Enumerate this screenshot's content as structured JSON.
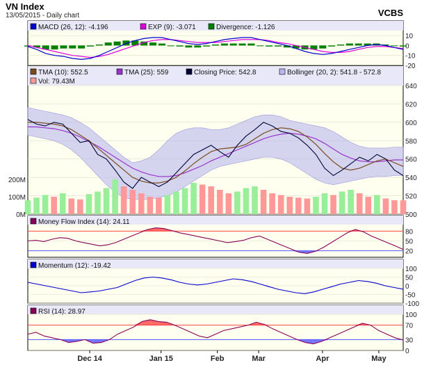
{
  "header": {
    "title": "VN Index",
    "subtitle": "13/05/2015 - Daily chart",
    "source": "VCBS"
  },
  "x_axis_labels": [
    "Dec 14",
    "Jan 15",
    "Feb",
    "Mar",
    "Apr",
    "May"
  ],
  "colors": {
    "panel_bg": "#fffff0",
    "legend_bg": "#e8e8f8",
    "macd": "#0000cc",
    "exp": "#dd00dd",
    "divergence": "#008000",
    "tma10": "#7b4a1e",
    "tma25": "#9933cc",
    "close": "#000033",
    "bollinger": "#b8b8ee",
    "vol_up": "#99ee99",
    "vol_down": "#ff9999",
    "mfi": "#880055",
    "momentum": "#0000cc",
    "rsi": "#880055",
    "band_high": "#ff4444",
    "band_low": "#5555ff"
  },
  "chart_data": [
    {
      "type": "line",
      "panel": "macd",
      "legend": [
        {
          "label": "MACD (26, 12): -4.196",
          "color": "macd"
        },
        {
          "label": "EXP (9): -3.071",
          "color": "exp"
        },
        {
          "label": "Divergence: -1.126",
          "color": "divergence"
        }
      ],
      "ylim": [
        -20,
        15
      ],
      "yticks": [
        "10",
        "0",
        "-10",
        "-20"
      ],
      "series": [
        {
          "name": "MACD",
          "values": [
            -1,
            -4,
            -8,
            -10,
            -11,
            -13,
            -14,
            -13,
            -10,
            -6,
            -2,
            2,
            5,
            7,
            8,
            8,
            6,
            4,
            2,
            1,
            2,
            4,
            6,
            7,
            8,
            8,
            6,
            4,
            2,
            0,
            -3,
            -6,
            -8,
            -9,
            -8,
            -6,
            -4,
            -2,
            0,
            1,
            0,
            -2,
            -4
          ]
        },
        {
          "name": "EXP (9)",
          "values": [
            0,
            -2,
            -4,
            -6,
            -8,
            -10,
            -11,
            -12,
            -11,
            -9,
            -6,
            -3,
            0,
            3,
            5,
            6,
            6,
            5,
            4,
            3,
            3,
            3,
            4,
            5,
            6,
            6,
            6,
            5,
            3,
            2,
            0,
            -2,
            -4,
            -6,
            -7,
            -7,
            -6,
            -4,
            -2,
            -1,
            -1,
            -2,
            -3
          ]
        },
        {
          "name": "Divergence",
          "values": [
            -1,
            -2,
            -4,
            -4,
            -3,
            -3,
            -3,
            -1,
            1,
            3,
            4,
            5,
            5,
            4,
            3,
            2,
            0,
            -1,
            -2,
            -2,
            -1,
            1,
            2,
            2,
            2,
            2,
            0,
            -1,
            -1,
            -2,
            -3,
            -4,
            -4,
            -3,
            -1,
            1,
            2,
            2,
            2,
            2,
            1,
            0,
            -1
          ]
        }
      ]
    },
    {
      "type": "line",
      "panel": "price",
      "legend": [
        {
          "label": "TMA (10): 552.5",
          "color": "tma10"
        },
        {
          "label": "TMA (25): 559",
          "color": "tma25"
        },
        {
          "label": "Closing Price: 542.8",
          "color": "close"
        },
        {
          "label": "Bollinger (20, 2): 541.8 - 572.8",
          "color": "bollinger"
        },
        {
          "label": "Vol: 79.43M",
          "color": "vol_down"
        }
      ],
      "ylim": [
        500,
        640
      ],
      "yticks": [
        "640",
        "620",
        "600",
        "580",
        "560",
        "540",
        "520",
        "500"
      ],
      "volume_ticks": [
        "200M",
        "100M",
        "0M"
      ],
      "volume_max_m": 300,
      "series": [
        {
          "name": "Closing Price",
          "values": [
            603,
            598,
            596,
            600,
            598,
            588,
            578,
            580,
            565,
            560,
            548,
            535,
            528,
            540,
            535,
            530,
            535,
            545,
            555,
            565,
            570,
            575,
            568,
            562,
            575,
            585,
            592,
            600,
            596,
            590,
            588,
            583,
            575,
            565,
            550,
            542,
            548,
            555,
            562,
            558,
            565,
            560,
            548,
            542
          ]
        },
        {
          "name": "TMA (10)",
          "values": [
            600,
            600,
            599,
            598,
            596,
            592,
            586,
            580,
            572,
            564,
            556,
            548,
            540,
            536,
            534,
            534,
            536,
            540,
            547,
            555,
            562,
            568,
            571,
            572,
            573,
            576,
            582,
            588,
            592,
            594,
            593,
            590,
            584,
            576,
            566,
            557,
            550,
            548,
            550,
            554,
            558,
            560,
            556,
            552
          ]
        },
        {
          "name": "TMA (25)",
          "values": [
            595,
            595,
            594,
            593,
            591,
            588,
            584,
            579,
            574,
            568,
            562,
            556,
            550,
            546,
            543,
            541,
            541,
            542,
            545,
            549,
            553,
            558,
            562,
            566,
            570,
            574,
            578,
            582,
            585,
            587,
            588,
            587,
            585,
            582,
            577,
            571,
            565,
            561,
            558,
            557,
            557,
            558,
            559,
            559
          ]
        },
        {
          "name": "Bollinger Upper",
          "values": [
            616,
            614,
            612,
            610,
            608,
            605,
            600,
            594,
            586,
            578,
            570,
            562,
            556,
            558,
            562,
            570,
            580,
            588,
            592,
            594,
            594,
            592,
            592,
            594,
            598,
            602,
            606,
            608,
            608,
            606,
            602,
            600,
            598,
            596,
            594,
            590,
            584,
            578,
            574,
            572,
            572,
            572,
            573,
            573
          ]
        },
        {
          "name": "Bollinger Lower",
          "values": [
            586,
            584,
            582,
            580,
            576,
            570,
            562,
            552,
            542,
            532,
            524,
            518,
            516,
            516,
            516,
            518,
            520,
            524,
            530,
            536,
            542,
            548,
            552,
            554,
            556,
            558,
            560,
            562,
            562,
            560,
            556,
            550,
            544,
            538,
            534,
            532,
            534,
            536,
            538,
            540,
            541,
            541,
            542,
            542
          ]
        },
        {
          "name": "Volume",
          "values": [
            80,
            95,
            110,
            100,
            120,
            90,
            85,
            115,
            130,
            150,
            200,
            160,
            140,
            120,
            100,
            95,
            110,
            130,
            150,
            180,
            170,
            160,
            140,
            120,
            130,
            150,
            160,
            140,
            120,
            110,
            100,
            95,
            90,
            100,
            120,
            110,
            130,
            140,
            120,
            100,
            110,
            90,
            80,
            79.43
          ]
        }
      ]
    },
    {
      "type": "line",
      "panel": "mfi",
      "legend": [
        {
          "label": "Money Flow Index (14): 24.11",
          "color": "mfi"
        }
      ],
      "ylim": [
        0,
        100
      ],
      "yticks": [
        "80",
        "50",
        "20"
      ],
      "bands": [
        80,
        20
      ],
      "series": [
        {
          "name": "Money Flow Index",
          "values": [
            50,
            52,
            48,
            55,
            60,
            58,
            50,
            45,
            40,
            35,
            38,
            45,
            55,
            65,
            75,
            85,
            90,
            88,
            82,
            75,
            70,
            65,
            60,
            55,
            50,
            45,
            48,
            52,
            60,
            65,
            55,
            45,
            35,
            25,
            15,
            12,
            18,
            30,
            45,
            60,
            75,
            85,
            78,
            65,
            55,
            45,
            35,
            24.11
          ]
        }
      ]
    },
    {
      "type": "line",
      "panel": "momentum",
      "legend": [
        {
          "label": "Momentum (12): -19.42",
          "color": "momentum"
        }
      ],
      "ylim": [
        -100,
        100
      ],
      "yticks": [
        "100",
        "50",
        "0",
        "-50",
        "-100"
      ],
      "series": [
        {
          "name": "Momentum",
          "values": [
            20,
            10,
            0,
            -10,
            -20,
            -30,
            -40,
            -35,
            -30,
            -20,
            -10,
            10,
            30,
            45,
            50,
            45,
            35,
            20,
            10,
            5,
            10,
            20,
            30,
            40,
            35,
            25,
            10,
            -5,
            -20,
            -30,
            -40,
            -45,
            -35,
            -20,
            -5,
            10,
            20,
            30,
            25,
            15,
            0,
            -10,
            -19.42
          ]
        }
      ]
    },
    {
      "type": "line",
      "panel": "rsi",
      "legend": [
        {
          "label": "RSI (14): 28.97",
          "color": "rsi"
        }
      ],
      "ylim": [
        0,
        100
      ],
      "yticks": [
        "100",
        "70",
        "30",
        "0"
      ],
      "bands": [
        70,
        30
      ],
      "series": [
        {
          "name": "RSI",
          "values": [
            45,
            50,
            40,
            35,
            30,
            22,
            25,
            30,
            20,
            22,
            30,
            45,
            55,
            65,
            80,
            85,
            80,
            78,
            70,
            60,
            50,
            40,
            35,
            45,
            55,
            60,
            65,
            70,
            78,
            72,
            60,
            50,
            40,
            30,
            22,
            18,
            25,
            35,
            45,
            55,
            65,
            75,
            70,
            55,
            45,
            35,
            28.97
          ]
        }
      ]
    }
  ]
}
